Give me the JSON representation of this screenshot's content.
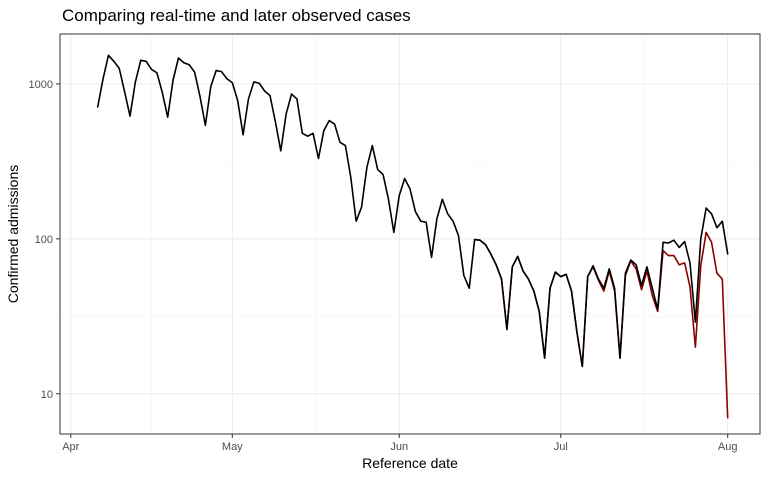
{
  "chart_data": {
    "type": "line",
    "title": "Comparing real-time and later observed cases",
    "xlabel": "Reference date",
    "ylabel": "Confirmed admissions",
    "y_scale": "log10",
    "ylim": [
      5.5,
      2100
    ],
    "xlim": [
      "2021-03-30",
      "2021-08-07"
    ],
    "grid": true,
    "legend": "none",
    "x_ticks": [
      {
        "date": "2021-04-01",
        "label": "Apr"
      },
      {
        "date": "2021-05-01",
        "label": "May"
      },
      {
        "date": "2021-06-01",
        "label": "Jun"
      },
      {
        "date": "2021-07-01",
        "label": "Jul"
      },
      {
        "date": "2021-08-01",
        "label": "Aug"
      }
    ],
    "y_ticks": [
      {
        "value": 10,
        "label": "10"
      },
      {
        "value": 100,
        "label": "100"
      },
      {
        "value": 1000,
        "label": "1000"
      }
    ],
    "series": [
      {
        "color": "#8b0000",
        "points": [
          [
            "2021-06-15",
            99
          ],
          [
            "2021-06-16",
            98
          ],
          [
            "2021-06-17",
            92
          ],
          [
            "2021-06-18",
            80
          ],
          [
            "2021-06-19",
            68
          ],
          [
            "2021-06-20",
            55
          ],
          [
            "2021-06-21",
            26
          ],
          [
            "2021-06-22",
            66
          ],
          [
            "2021-06-23",
            77
          ],
          [
            "2021-06-24",
            62
          ],
          [
            "2021-06-25",
            55
          ],
          [
            "2021-06-26",
            46
          ],
          [
            "2021-06-27",
            34
          ],
          [
            "2021-06-28",
            17
          ],
          [
            "2021-06-29",
            48
          ],
          [
            "2021-06-30",
            61
          ],
          [
            "2021-07-01",
            57
          ],
          [
            "2021-07-02",
            59
          ],
          [
            "2021-07-03",
            46
          ],
          [
            "2021-07-04",
            25
          ],
          [
            "2021-07-05",
            15
          ],
          [
            "2021-07-06",
            57
          ],
          [
            "2021-07-07",
            66
          ],
          [
            "2021-07-08",
            54
          ],
          [
            "2021-07-09",
            46
          ],
          [
            "2021-07-10",
            62
          ],
          [
            "2021-07-11",
            46
          ],
          [
            "2021-07-12",
            17
          ],
          [
            "2021-07-13",
            58
          ],
          [
            "2021-07-14",
            72
          ],
          [
            "2021-07-15",
            64
          ],
          [
            "2021-07-16",
            47
          ],
          [
            "2021-07-17",
            62
          ],
          [
            "2021-07-18",
            43
          ],
          [
            "2021-07-19",
            34
          ],
          [
            "2021-07-20",
            84
          ],
          [
            "2021-07-21",
            78
          ],
          [
            "2021-07-22",
            78
          ],
          [
            "2021-07-23",
            68
          ],
          [
            "2021-07-24",
            70
          ],
          [
            "2021-07-25",
            49
          ],
          [
            "2021-07-26",
            20
          ],
          [
            "2021-07-27",
            67
          ],
          [
            "2021-07-28",
            110
          ],
          [
            "2021-07-29",
            95
          ],
          [
            "2021-07-30",
            60
          ],
          [
            "2021-07-31",
            55
          ],
          [
            "2021-08-01",
            7
          ]
        ]
      },
      {
        "color": "#000000",
        "points": [
          [
            "2021-04-06",
            710
          ],
          [
            "2021-04-07",
            1080
          ],
          [
            "2021-04-08",
            1530
          ],
          [
            "2021-04-09",
            1400
          ],
          [
            "2021-04-10",
            1260
          ],
          [
            "2021-04-11",
            890
          ],
          [
            "2021-04-12",
            620
          ],
          [
            "2021-04-13",
            1030
          ],
          [
            "2021-04-14",
            1420
          ],
          [
            "2021-04-15",
            1400
          ],
          [
            "2021-04-16",
            1240
          ],
          [
            "2021-04-17",
            1180
          ],
          [
            "2021-04-18",
            880
          ],
          [
            "2021-04-19",
            610
          ],
          [
            "2021-04-20",
            1060
          ],
          [
            "2021-04-21",
            1470
          ],
          [
            "2021-04-22",
            1370
          ],
          [
            "2021-04-23",
            1330
          ],
          [
            "2021-04-24",
            1190
          ],
          [
            "2021-04-25",
            830
          ],
          [
            "2021-04-26",
            540
          ],
          [
            "2021-04-27",
            960
          ],
          [
            "2021-04-28",
            1220
          ],
          [
            "2021-04-29",
            1200
          ],
          [
            "2021-04-30",
            1080
          ],
          [
            "2021-05-01",
            1020
          ],
          [
            "2021-05-02",
            780
          ],
          [
            "2021-05-03",
            470
          ],
          [
            "2021-05-04",
            800
          ],
          [
            "2021-05-05",
            1030
          ],
          [
            "2021-05-06",
            1010
          ],
          [
            "2021-05-07",
            900
          ],
          [
            "2021-05-08",
            840
          ],
          [
            "2021-05-09",
            570
          ],
          [
            "2021-05-10",
            370
          ],
          [
            "2021-05-11",
            640
          ],
          [
            "2021-05-12",
            860
          ],
          [
            "2021-05-13",
            800
          ],
          [
            "2021-05-14",
            480
          ],
          [
            "2021-05-15",
            460
          ],
          [
            "2021-05-16",
            480
          ],
          [
            "2021-05-17",
            330
          ],
          [
            "2021-05-18",
            500
          ],
          [
            "2021-05-19",
            580
          ],
          [
            "2021-05-20",
            550
          ],
          [
            "2021-05-21",
            420
          ],
          [
            "2021-05-22",
            400
          ],
          [
            "2021-05-23",
            250
          ],
          [
            "2021-05-24",
            130
          ],
          [
            "2021-05-25",
            160
          ],
          [
            "2021-05-26",
            290
          ],
          [
            "2021-05-27",
            400
          ],
          [
            "2021-05-28",
            280
          ],
          [
            "2021-05-29",
            260
          ],
          [
            "2021-05-30",
            180
          ],
          [
            "2021-05-31",
            110
          ],
          [
            "2021-06-01",
            190
          ],
          [
            "2021-06-02",
            245
          ],
          [
            "2021-06-03",
            210
          ],
          [
            "2021-06-04",
            150
          ],
          [
            "2021-06-05",
            130
          ],
          [
            "2021-06-06",
            128
          ],
          [
            "2021-06-07",
            76
          ],
          [
            "2021-06-08",
            135
          ],
          [
            "2021-06-09",
            180
          ],
          [
            "2021-06-10",
            145
          ],
          [
            "2021-06-11",
            130
          ],
          [
            "2021-06-12",
            105
          ],
          [
            "2021-06-13",
            58
          ],
          [
            "2021-06-14",
            48
          ],
          [
            "2021-06-15",
            99
          ],
          [
            "2021-06-16",
            98
          ],
          [
            "2021-06-17",
            92
          ],
          [
            "2021-06-18",
            80
          ],
          [
            "2021-06-19",
            68
          ],
          [
            "2021-06-20",
            55
          ],
          [
            "2021-06-21",
            26
          ],
          [
            "2021-06-22",
            66
          ],
          [
            "2021-06-23",
            77
          ],
          [
            "2021-06-24",
            62
          ],
          [
            "2021-06-25",
            55
          ],
          [
            "2021-06-26",
            46
          ],
          [
            "2021-06-27",
            34
          ],
          [
            "2021-06-28",
            17
          ],
          [
            "2021-06-29",
            48
          ],
          [
            "2021-06-30",
            61
          ],
          [
            "2021-07-01",
            57
          ],
          [
            "2021-07-02",
            59
          ],
          [
            "2021-07-03",
            46
          ],
          [
            "2021-07-04",
            25
          ],
          [
            "2021-07-05",
            15
          ],
          [
            "2021-07-06",
            57
          ],
          [
            "2021-07-07",
            67
          ],
          [
            "2021-07-08",
            55
          ],
          [
            "2021-07-09",
            48
          ],
          [
            "2021-07-10",
            64
          ],
          [
            "2021-07-11",
            48
          ],
          [
            "2021-07-12",
            17
          ],
          [
            "2021-07-13",
            60
          ],
          [
            "2021-07-14",
            73
          ],
          [
            "2021-07-15",
            68
          ],
          [
            "2021-07-16",
            50
          ],
          [
            "2021-07-17",
            66
          ],
          [
            "2021-07-18",
            48
          ],
          [
            "2021-07-19",
            35
          ],
          [
            "2021-07-20",
            95
          ],
          [
            "2021-07-21",
            94
          ],
          [
            "2021-07-22",
            98
          ],
          [
            "2021-07-23",
            88
          ],
          [
            "2021-07-24",
            96
          ],
          [
            "2021-07-25",
            70
          ],
          [
            "2021-07-26",
            29
          ],
          [
            "2021-07-27",
            100
          ],
          [
            "2021-07-28",
            158
          ],
          [
            "2021-07-29",
            145
          ],
          [
            "2021-07-30",
            118
          ],
          [
            "2021-07-31",
            130
          ],
          [
            "2021-08-01",
            80
          ]
        ]
      }
    ]
  }
}
